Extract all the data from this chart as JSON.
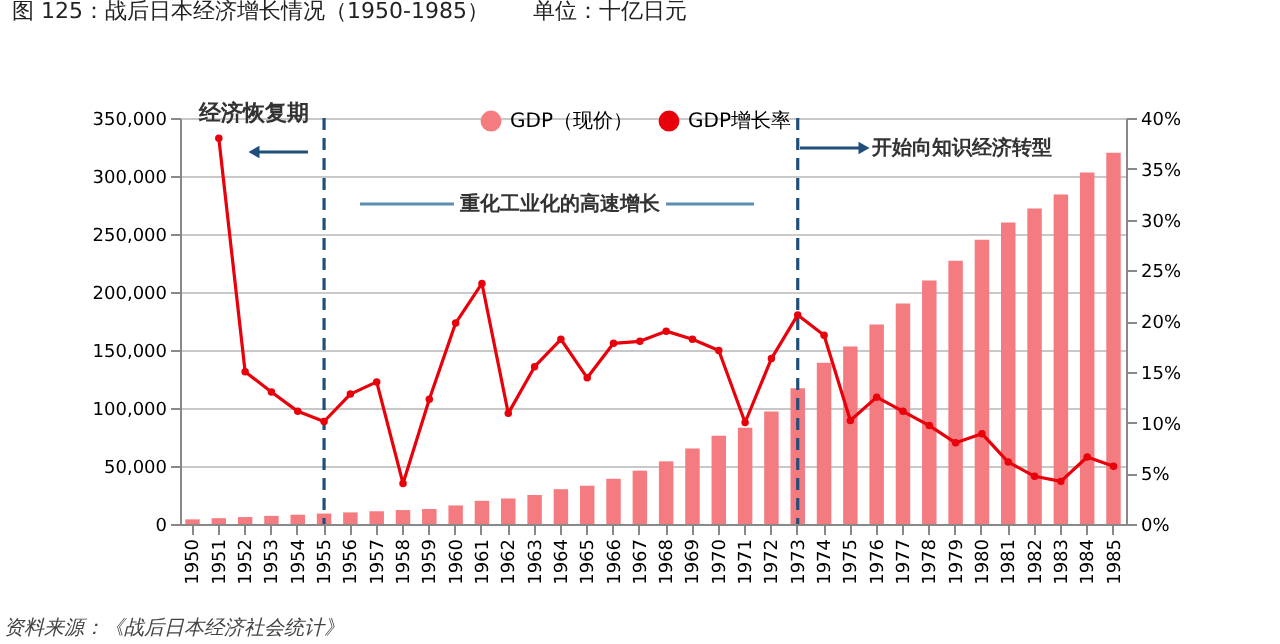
{
  "chart_data": {
    "type": "bar",
    "title": "图 125：战后日本经济增长情况（1950-1985）　　单位：十亿日元",
    "categories": [
      "1950",
      "1951",
      "1952",
      "1953",
      "1954",
      "1955",
      "1956",
      "1957",
      "1958",
      "1959",
      "1960",
      "1961",
      "1962",
      "1963",
      "1964",
      "1965",
      "1966",
      "1967",
      "1968",
      "1969",
      "1970",
      "1971",
      "1972",
      "1973",
      "1974",
      "1975",
      "1976",
      "1977",
      "1978",
      "1979",
      "1980",
      "1981",
      "1982",
      "1983",
      "1984",
      "1985"
    ],
    "series": [
      {
        "name": "GDP（现价）",
        "color": "#f47c80",
        "values": [
          4000,
          5000,
          6000,
          7000,
          8000,
          9000,
          10000,
          11000,
          12000,
          13000,
          16000,
          20000,
          22000,
          25000,
          30000,
          33000,
          39000,
          46000,
          54000,
          65000,
          76000,
          83000,
          97000,
          117000,
          139000,
          153000,
          172000,
          190000,
          210000,
          227000,
          245000,
          260000,
          272000,
          284000,
          303000,
          320000
        ]
      },
      {
        "name": "GDP增长率",
        "type": "line",
        "axis": "y2",
        "color": "#e8000b",
        "marker": "circle",
        "line_style": "solid",
        "values": [
          null,
          38.0,
          15.0,
          13.0,
          11.1,
          10.1,
          12.8,
          14.0,
          4.0,
          12.3,
          19.8,
          23.7,
          10.9,
          15.5,
          18.2,
          14.4,
          17.8,
          18.0,
          19.0,
          18.2,
          17.1,
          10.0,
          16.3,
          20.6,
          18.6,
          10.2,
          12.5,
          11.1,
          9.7,
          8.0,
          8.9,
          6.1,
          4.7,
          4.2,
          6.6,
          5.7
        ]
      }
    ],
    "ylim": [
      0,
      350000
    ],
    "yticks": [
      {
        "value": 0,
        "label": "0"
      },
      {
        "value": 50000,
        "label": "50,000"
      },
      {
        "value": 100000,
        "label": "100,000"
      },
      {
        "value": 150000,
        "label": "150,000"
      },
      {
        "value": 200000,
        "label": "200,000"
      },
      {
        "value": 250000,
        "label": "250,000"
      },
      {
        "value": 300000,
        "label": "300,000"
      },
      {
        "value": 350000,
        "label": "350,000"
      }
    ],
    "y2lim": [
      0,
      40
    ],
    "y2ticks": [
      {
        "value": 0,
        "label": "0%"
      },
      {
        "value": 5,
        "label": "5%"
      },
      {
        "value": 10,
        "label": "10%"
      },
      {
        "value": 15,
        "label": "15%"
      },
      {
        "value": 20,
        "label": "20%"
      },
      {
        "value": 25,
        "label": "25%"
      },
      {
        "value": 30,
        "label": "30%"
      },
      {
        "value": 35,
        "label": "35%"
      },
      {
        "value": 40,
        "label": "40%"
      }
    ],
    "ref_lines": [
      {
        "axis": "x",
        "value": "1955",
        "color": "#1f4e79",
        "line_style": "dashed"
      },
      {
        "axis": "x",
        "value": "1973",
        "color": "#1f4e79",
        "line_style": "dashed"
      }
    ],
    "annotations": [
      "经济恢复期",
      "重化工业化的高速增长",
      "开始向知识经济转型",
      "资料来源：《战后日本经济社会统计》"
    ],
    "grid": "y",
    "legend": "top"
  }
}
